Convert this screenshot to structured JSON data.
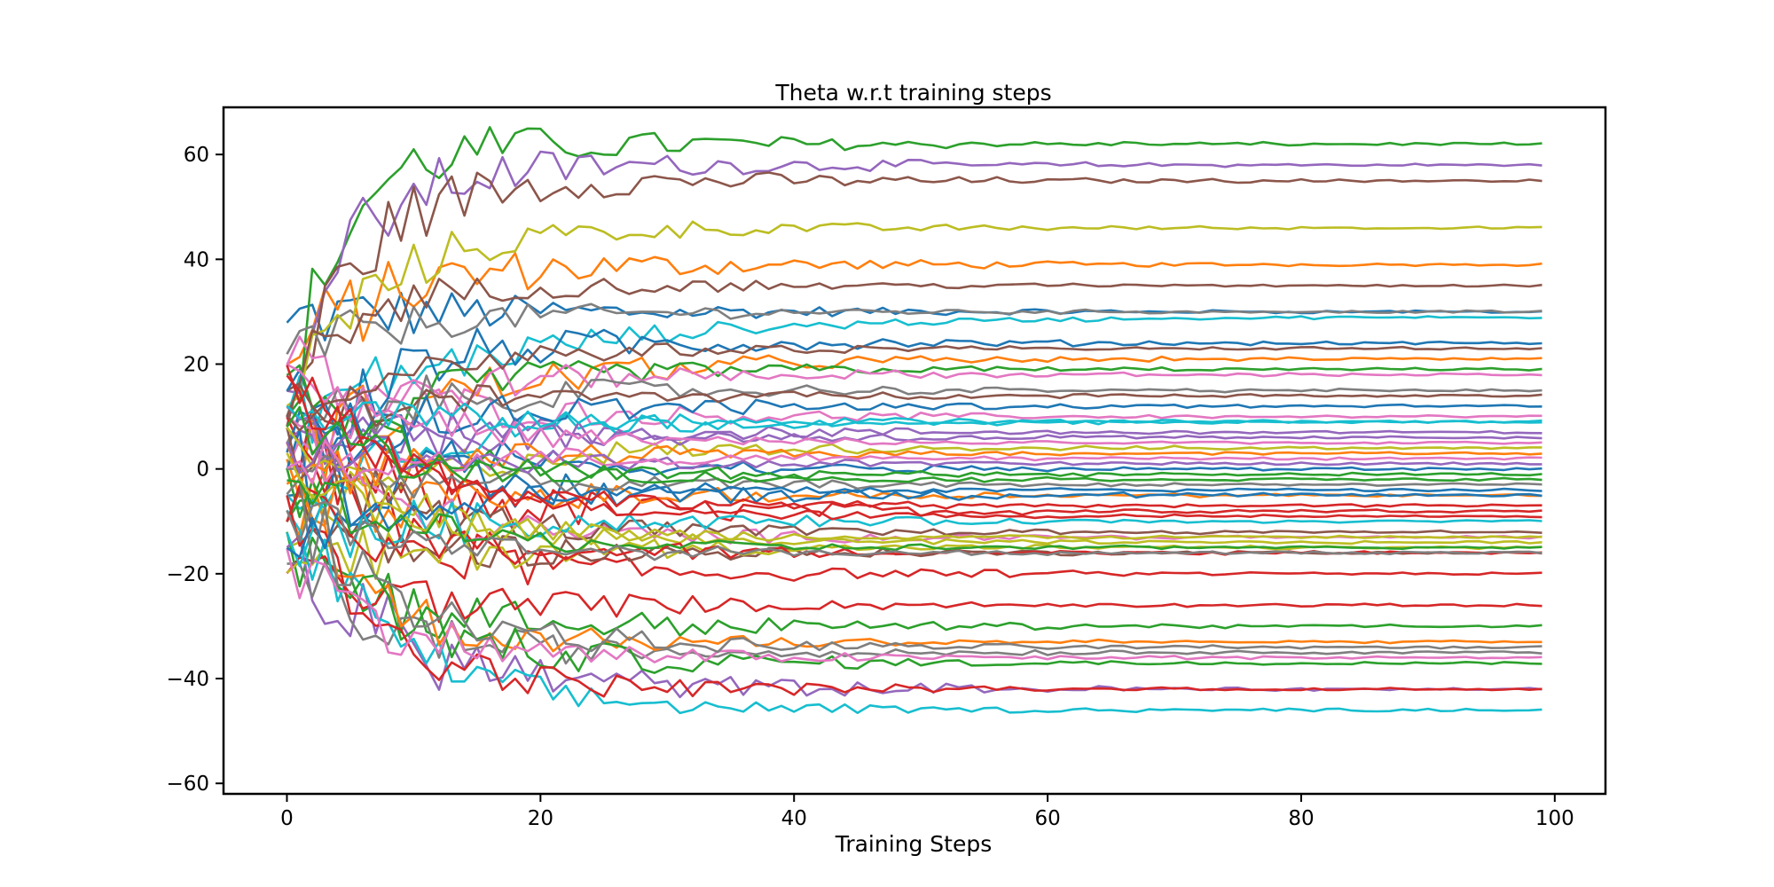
{
  "chart_data": {
    "type": "line",
    "title": "Theta w.r.t training steps",
    "xlabel": "Training Steps",
    "ylabel": "",
    "xlim": [
      -5,
      104
    ],
    "ylim": [
      -62,
      69
    ],
    "xticks": [
      0,
      20,
      40,
      60,
      80,
      100
    ],
    "yticks": [
      -60,
      -40,
      -20,
      0,
      20,
      40,
      60
    ],
    "xtick_labels": [
      "0",
      "20",
      "40",
      "60",
      "80",
      "100"
    ],
    "ytick_labels": [
      "−60",
      "−40",
      "−20",
      "0",
      "20",
      "40",
      "60"
    ],
    "grid": false,
    "legend": "none",
    "n_points": 100,
    "palette": [
      "#1f77b4",
      "#ff7f0e",
      "#2ca02c",
      "#d62728",
      "#9467bd",
      "#8c564b",
      "#e377c2",
      "#7f7f7f",
      "#bcbd22",
      "#17becf"
    ],
    "series": [
      {
        "start": 28,
        "settle": 30,
        "amp": 8,
        "decay": 0.2,
        "color": "#1f77b4"
      },
      {
        "start": 20,
        "settle": 39,
        "amp": 10,
        "decay": 0.15,
        "color": "#ff7f0e"
      },
      {
        "start": 10,
        "settle": 62,
        "amp": 10,
        "decay": 0.25,
        "color": "#2ca02c"
      },
      {
        "start": 5,
        "settle": -8,
        "amp": 12,
        "decay": 0.15,
        "color": "#d62728"
      },
      {
        "start": 15,
        "settle": 58,
        "amp": 10,
        "decay": 0.2,
        "color": "#9467bd"
      },
      {
        "start": 8,
        "settle": 55,
        "amp": 10,
        "decay": 0.2,
        "color": "#8c564b"
      },
      {
        "start": 20,
        "settle": 10,
        "amp": 8,
        "decay": 0.12,
        "color": "#e377c2"
      },
      {
        "start": 22,
        "settle": 30,
        "amp": 6,
        "decay": 0.12,
        "color": "#7f7f7f"
      },
      {
        "start": 12,
        "settle": 46,
        "amp": 8,
        "decay": 0.15,
        "color": "#bcbd22"
      },
      {
        "start": 10,
        "settle": 29,
        "amp": 8,
        "decay": 0.06,
        "color": "#17becf"
      },
      {
        "start": -5,
        "settle": 24,
        "amp": 10,
        "decay": 0.18,
        "color": "#1f77b4"
      },
      {
        "start": 2,
        "settle": 21,
        "amp": 10,
        "decay": 0.08,
        "color": "#ff7f0e"
      },
      {
        "start": -10,
        "settle": 19,
        "amp": 8,
        "decay": 0.15,
        "color": "#2ca02c"
      },
      {
        "start": 10,
        "settle": -20,
        "amp": 10,
        "decay": 0.15,
        "color": "#d62728"
      },
      {
        "start": 5,
        "settle": 7,
        "amp": 8,
        "decay": 0.15,
        "color": "#9467bd"
      },
      {
        "start": 15,
        "settle": 35,
        "amp": 6,
        "decay": 0.2,
        "color": "#8c564b"
      },
      {
        "start": 0,
        "settle": 18,
        "amp": 8,
        "decay": 0.15,
        "color": "#e377c2"
      },
      {
        "start": 5,
        "settle": 15,
        "amp": 8,
        "decay": 0.15,
        "color": "#7f7f7f"
      },
      {
        "start": -15,
        "settle": 4,
        "amp": 8,
        "decay": 0.12,
        "color": "#bcbd22"
      },
      {
        "start": -5,
        "settle": 9,
        "amp": 8,
        "decay": 0.12,
        "color": "#17becf"
      },
      {
        "start": 3,
        "settle": 12,
        "amp": 8,
        "decay": 0.12,
        "color": "#1f77b4"
      },
      {
        "start": -8,
        "settle": -5,
        "amp": 8,
        "decay": 0.1,
        "color": "#ff7f0e"
      },
      {
        "start": -12,
        "settle": -30,
        "amp": 10,
        "decay": 0.15,
        "color": "#2ca02c"
      },
      {
        "start": -20,
        "settle": -26,
        "amp": 8,
        "decay": 0.15,
        "color": "#d62728"
      },
      {
        "start": -15,
        "settle": -42,
        "amp": 12,
        "decay": 0.12,
        "color": "#9467bd"
      },
      {
        "start": -10,
        "settle": -16,
        "amp": 8,
        "decay": 0.15,
        "color": "#8c564b"
      },
      {
        "start": 10,
        "settle": -13,
        "amp": 8,
        "decay": 0.15,
        "color": "#e377c2"
      },
      {
        "start": -18,
        "settle": -35,
        "amp": 8,
        "decay": 0.15,
        "color": "#7f7f7f"
      },
      {
        "start": -20,
        "settle": -15,
        "amp": 8,
        "decay": 0.12,
        "color": "#bcbd22"
      },
      {
        "start": -8,
        "settle": -46,
        "amp": 8,
        "decay": 0.12,
        "color": "#17becf"
      },
      {
        "start": 0,
        "settle": -5,
        "amp": 12,
        "decay": 0.08,
        "color": "#1f77b4"
      },
      {
        "start": 5,
        "settle": -33,
        "amp": 8,
        "decay": 0.2,
        "color": "#ff7f0e"
      },
      {
        "start": 0,
        "settle": -37,
        "amp": 10,
        "decay": 0.15,
        "color": "#2ca02c"
      },
      {
        "start": -5,
        "settle": -42,
        "amp": 8,
        "decay": 0.15,
        "color": "#d62728"
      },
      {
        "start": 12,
        "settle": 6,
        "amp": 8,
        "decay": 0.12,
        "color": "#9467bd"
      },
      {
        "start": 8,
        "settle": -12,
        "amp": 8,
        "decay": 0.15,
        "color": "#8c564b"
      },
      {
        "start": -15,
        "settle": -36,
        "amp": 8,
        "decay": 0.15,
        "color": "#e377c2"
      },
      {
        "start": 0,
        "settle": -3,
        "amp": 6,
        "decay": 0.12,
        "color": "#7f7f7f"
      },
      {
        "start": 8,
        "settle": -14,
        "amp": 6,
        "decay": 0.12,
        "color": "#bcbd22"
      },
      {
        "start": -12,
        "settle": -10,
        "amp": 8,
        "decay": 0.12,
        "color": "#17becf"
      },
      {
        "start": 15,
        "settle": 0,
        "amp": 8,
        "decay": 0.12,
        "color": "#1f77b4"
      },
      {
        "start": -3,
        "settle": 3,
        "amp": 6,
        "decay": 0.12,
        "color": "#ff7f0e"
      },
      {
        "start": 18,
        "settle": -2,
        "amp": 6,
        "decay": 0.12,
        "color": "#2ca02c"
      },
      {
        "start": -10,
        "settle": -16,
        "amp": 8,
        "decay": 0.12,
        "color": "#d62728"
      },
      {
        "start": 5,
        "settle": 1,
        "amp": 6,
        "decay": 0.12,
        "color": "#9467bd"
      },
      {
        "start": 10,
        "settle": 14,
        "amp": 6,
        "decay": 0.12,
        "color": "#8c564b"
      },
      {
        "start": 20,
        "settle": 5,
        "amp": 6,
        "decay": 0.12,
        "color": "#e377c2"
      },
      {
        "start": -5,
        "settle": -34,
        "amp": 8,
        "decay": 0.12,
        "color": "#7f7f7f"
      },
      {
        "start": 3,
        "settle": -13,
        "amp": 6,
        "decay": 0.12,
        "color": "#bcbd22"
      },
      {
        "start": 12,
        "settle": 9,
        "amp": 6,
        "decay": 0.12,
        "color": "#17becf"
      },
      {
        "start": -15,
        "settle": -4,
        "amp": 6,
        "decay": 0.12,
        "color": "#1f77b4"
      },
      {
        "start": 18,
        "settle": -7,
        "amp": 6,
        "decay": 0.12,
        "color": "#d62728"
      },
      {
        "start": -2,
        "settle": -15,
        "amp": 6,
        "decay": 0.12,
        "color": "#2ca02c"
      },
      {
        "start": 10,
        "settle": 23,
        "amp": 6,
        "decay": 0.12,
        "color": "#8c564b"
      },
      {
        "start": 0,
        "settle": 2,
        "amp": 6,
        "decay": 0.12,
        "color": "#e377c2"
      },
      {
        "start": 20,
        "settle": -9,
        "amp": 6,
        "decay": 0.12,
        "color": "#d62728"
      },
      {
        "start": 8,
        "settle": -1,
        "amp": 6,
        "decay": 0.12,
        "color": "#2ca02c"
      },
      {
        "start": -8,
        "settle": -16,
        "amp": 6,
        "decay": 0.12,
        "color": "#7f7f7f"
      }
    ]
  }
}
